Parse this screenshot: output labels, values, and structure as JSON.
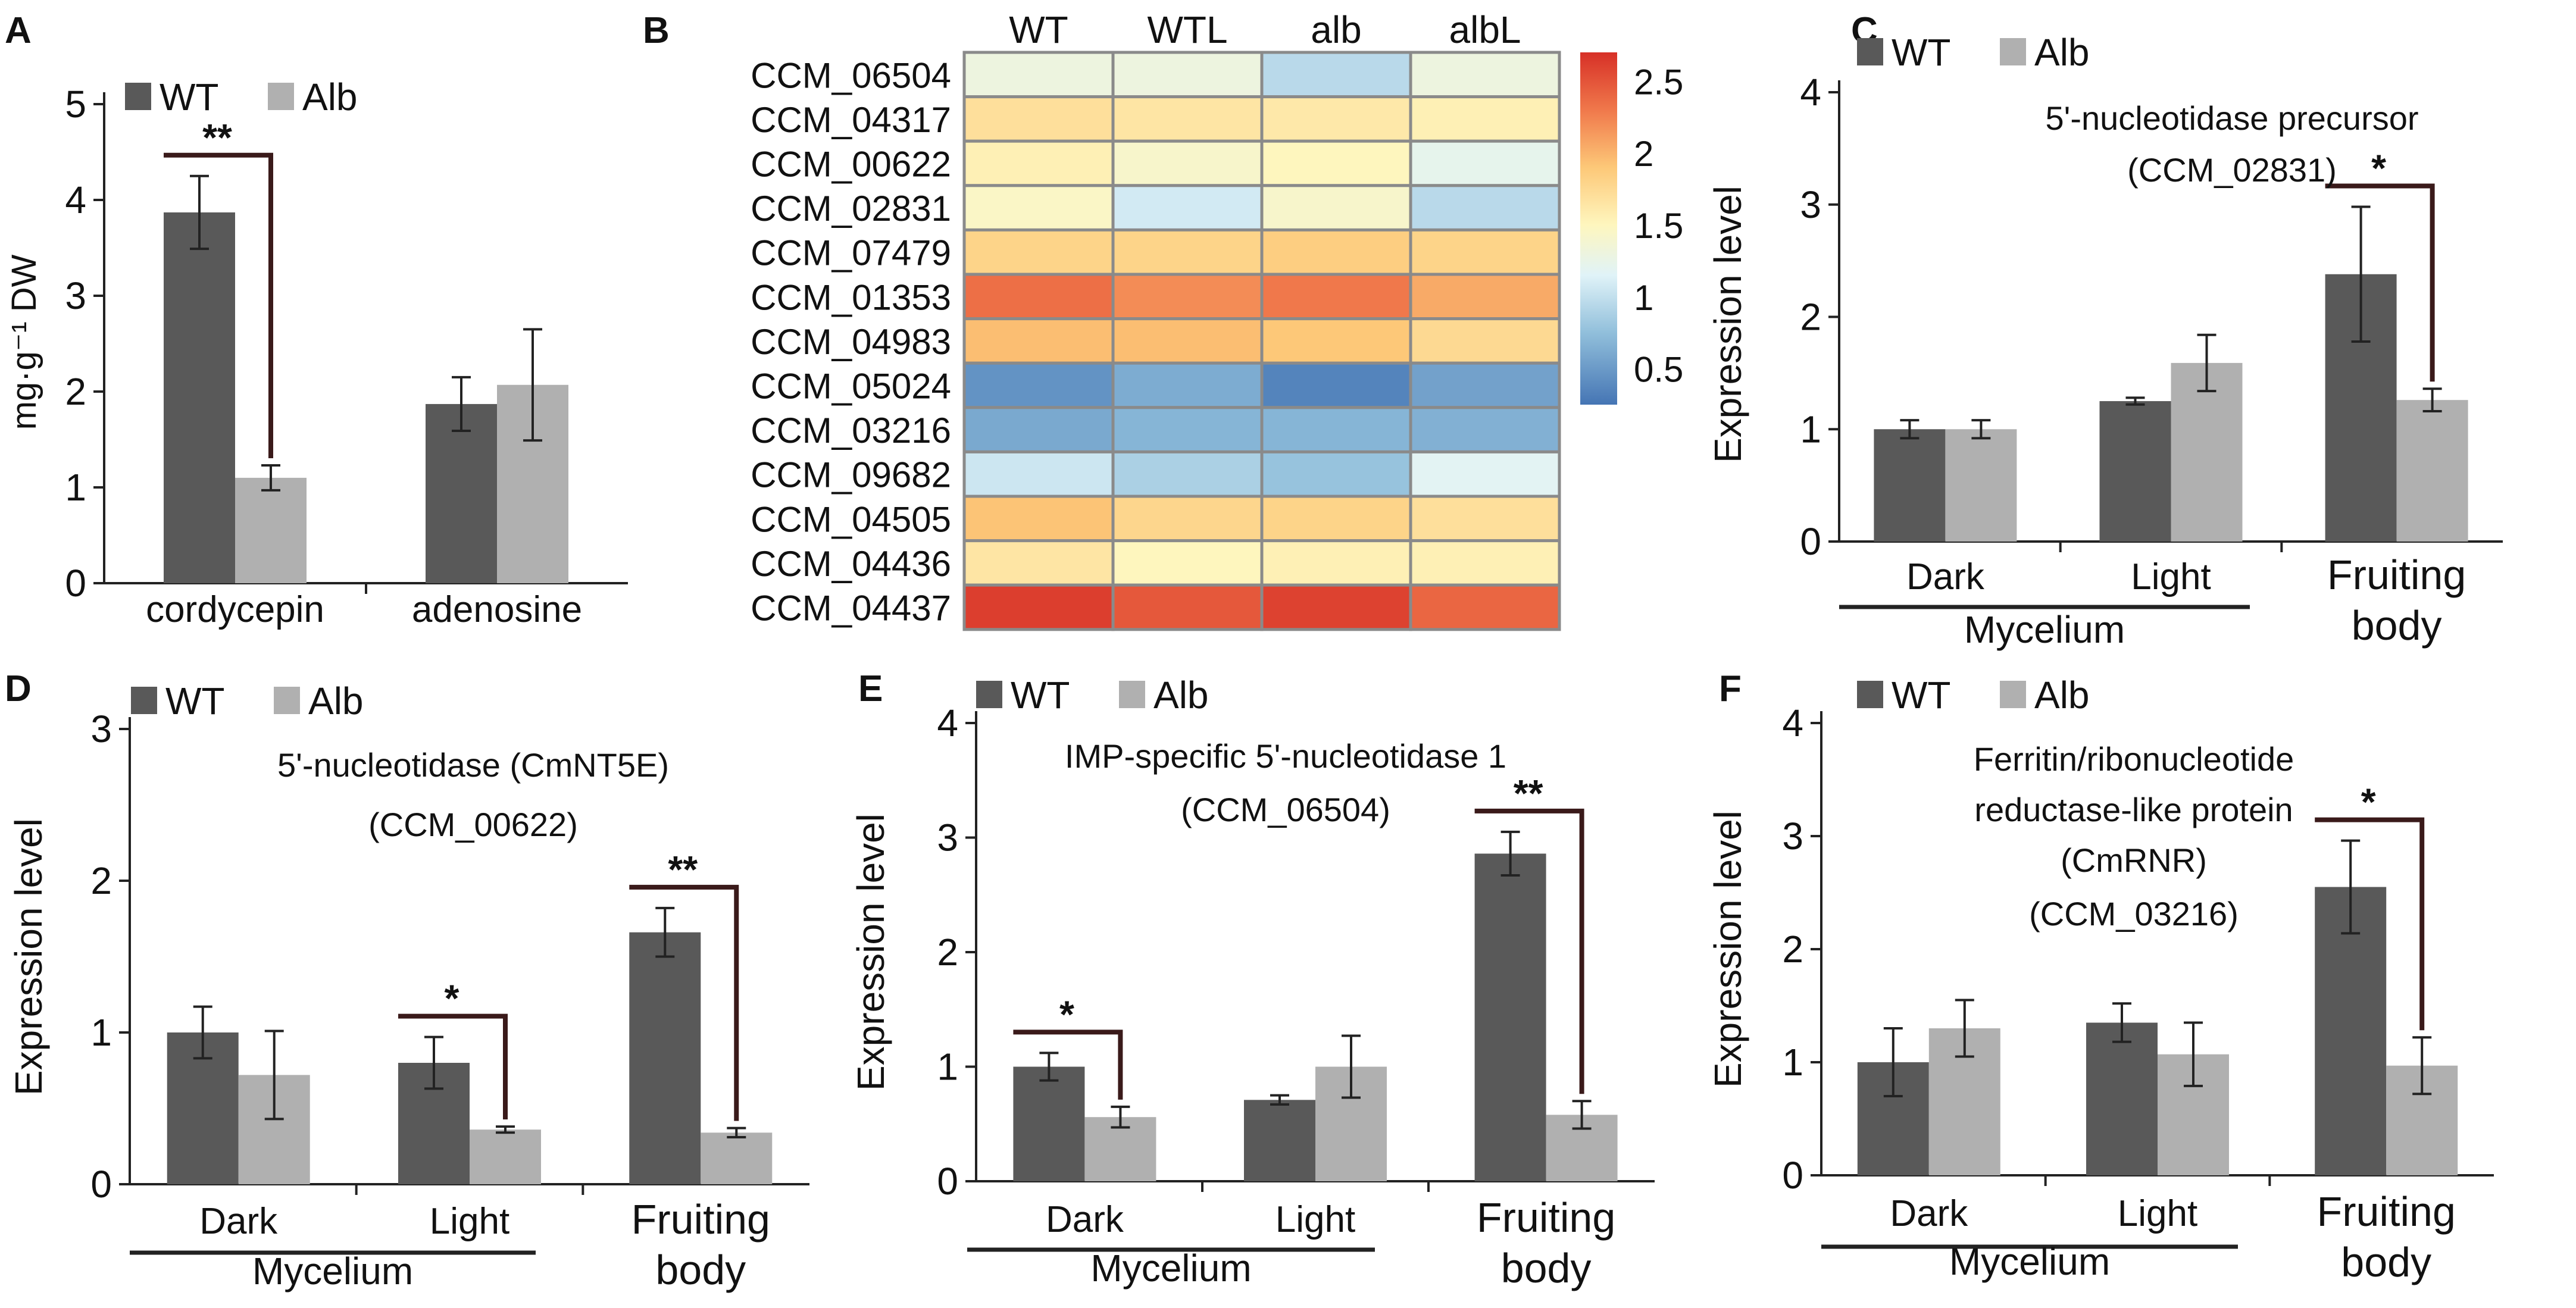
{
  "figure": {
    "panels": [
      {
        "id": "A",
        "kind": "bar"
      },
      {
        "id": "B",
        "kind": "heatmap"
      },
      {
        "id": "C",
        "kind": "bar"
      },
      {
        "id": "D",
        "kind": "bar"
      },
      {
        "id": "E",
        "kind": "bar"
      },
      {
        "id": "F",
        "kind": "bar"
      }
    ]
  },
  "colors": {
    "wt": "#595959",
    "alb": "#b0b0b0",
    "bracket": "#3a1a1a",
    "heat_border": "#8a8a8a"
  },
  "chart_data": [
    {
      "panel": "A",
      "type": "bar",
      "ylabel": "mg·g⁻¹ DW",
      "ylim": [
        0,
        5
      ],
      "yticks": [
        0,
        1,
        2,
        3,
        4,
        5
      ],
      "legend": [
        "WT",
        "Alb"
      ],
      "categories": [
        "cordycepin",
        "adenosine"
      ],
      "series": [
        {
          "name": "WT",
          "values": [
            3.87,
            1.87
          ],
          "errors": [
            0.38,
            0.28
          ]
        },
        {
          "name": "Alb",
          "values": [
            1.1,
            2.07
          ],
          "errors": [
            0.13,
            0.58
          ]
        }
      ],
      "significance": [
        {
          "group": 0,
          "label": "**"
        }
      ]
    },
    {
      "panel": "B",
      "type": "heatmap",
      "columns": [
        "WT",
        "WTL",
        "alb",
        "albL"
      ],
      "rows": [
        "CCM_06504",
        "CCM_04317",
        "CCM_00622",
        "CCM_02831",
        "CCM_07479",
        "CCM_01353",
        "CCM_04983",
        "CCM_05024",
        "CCM_03216",
        "CCM_09682",
        "CCM_04505",
        "CCM_04436",
        "CCM_04437"
      ],
      "values": [
        [
          1.3,
          1.3,
          0.95,
          1.3
        ],
        [
          1.7,
          1.65,
          1.62,
          1.55
        ],
        [
          1.55,
          1.42,
          1.5,
          1.22
        ],
        [
          1.45,
          1.08,
          1.42,
          0.95
        ],
        [
          1.8,
          1.8,
          1.85,
          1.8
        ],
        [
          2.35,
          2.2,
          2.3,
          2.05
        ],
        [
          1.95,
          1.95,
          1.9,
          1.75
        ],
        [
          0.45,
          0.62,
          0.35,
          0.55
        ],
        [
          0.6,
          0.68,
          0.68,
          0.65
        ],
        [
          1.05,
          0.88,
          0.78,
          1.18
        ],
        [
          1.92,
          1.78,
          1.8,
          1.7
        ],
        [
          1.65,
          1.5,
          1.55,
          1.55
        ],
        [
          2.62,
          2.48,
          2.6,
          2.4
        ]
      ],
      "colorbar": {
        "min": 0.25,
        "max": 2.7,
        "ticks": [
          0.5,
          1,
          1.5,
          2,
          2.5
        ],
        "tick_labels": [
          "0.5",
          "1",
          "1.5",
          "2",
          "2.5"
        ]
      }
    },
    {
      "panel": "C",
      "type": "bar",
      "title_lines": [
        "5'-nucleotidase precursor",
        "(CCM_02831)"
      ],
      "ylabel": "Expression level",
      "ylim": [
        0,
        4
      ],
      "yticks": [
        0,
        1,
        2,
        3,
        4
      ],
      "legend": [
        "WT",
        "Alb"
      ],
      "categories": [
        "Dark",
        "Light",
        "Fruiting body"
      ],
      "category_lines": [
        [
          "Dark"
        ],
        [
          "Light"
        ],
        [
          "Fruiting",
          "body"
        ]
      ],
      "group_label": "Mycelium",
      "series": [
        {
          "name": "WT",
          "values": [
            1.0,
            1.25,
            2.38
          ],
          "errors": [
            0.08,
            0.03,
            0.6
          ]
        },
        {
          "name": "Alb",
          "values": [
            1.0,
            1.59,
            1.26
          ],
          "errors": [
            0.08,
            0.25,
            0.1
          ]
        }
      ],
      "significance": [
        {
          "group": 2,
          "label": "*"
        }
      ]
    },
    {
      "panel": "D",
      "type": "bar",
      "title_lines": [
        "5'-nucleotidase (CmNT5E)",
        "(CCM_00622)"
      ],
      "ylabel": "Expression level",
      "ylim": [
        0,
        3
      ],
      "yticks": [
        0,
        1,
        2,
        3
      ],
      "legend": [
        "WT",
        "Alb"
      ],
      "categories": [
        "Dark",
        "Light",
        "Fruiting body"
      ],
      "category_lines": [
        [
          "Dark"
        ],
        [
          "Light"
        ],
        [
          "Fruiting",
          "body"
        ]
      ],
      "group_label": "Mycelium",
      "series": [
        {
          "name": "WT",
          "values": [
            1.0,
            0.8,
            1.66
          ],
          "errors": [
            0.17,
            0.17,
            0.16
          ]
        },
        {
          "name": "Alb",
          "values": [
            0.72,
            0.36,
            0.34
          ],
          "errors": [
            0.29,
            0.02,
            0.03
          ]
        }
      ],
      "significance": [
        {
          "group": 1,
          "label": "*"
        },
        {
          "group": 2,
          "label": "**"
        }
      ]
    },
    {
      "panel": "E",
      "type": "bar",
      "title_lines": [
        "IMP-specific 5'-nucleotidase 1",
        "(CCM_06504)"
      ],
      "ylabel": "Expression level",
      "ylim": [
        0,
        4
      ],
      "yticks": [
        0,
        1,
        2,
        3,
        4
      ],
      "legend": [
        "WT",
        "Alb"
      ],
      "categories": [
        "Dark",
        "Light",
        "Fruiting body"
      ],
      "category_lines": [
        [
          "Dark"
        ],
        [
          "Light"
        ],
        [
          "Fruiting",
          "body"
        ]
      ],
      "group_label": "Mycelium",
      "series": [
        {
          "name": "WT",
          "values": [
            1.0,
            0.71,
            2.86
          ],
          "errors": [
            0.12,
            0.04,
            0.19
          ]
        },
        {
          "name": "Alb",
          "values": [
            0.56,
            1.0,
            0.58
          ],
          "errors": [
            0.09,
            0.27,
            0.12
          ]
        }
      ],
      "significance": [
        {
          "group": 0,
          "label": "*"
        },
        {
          "group": 2,
          "label": "**"
        }
      ]
    },
    {
      "panel": "F",
      "type": "bar",
      "title_lines": [
        "Ferritin/ribonucleotide",
        "reductase-like protein",
        "(CmRNR)",
        "(CCM_03216)"
      ],
      "ylabel": "Expression level",
      "ylim": [
        0,
        4
      ],
      "yticks": [
        0,
        1,
        2,
        3,
        4
      ],
      "legend": [
        "WT",
        "Alb"
      ],
      "categories": [
        "Dark",
        "Light",
        "Fruiting body"
      ],
      "category_lines": [
        [
          "Dark"
        ],
        [
          "Light"
        ],
        [
          "Fruiting",
          "body"
        ]
      ],
      "group_label": "Mycelium",
      "series": [
        {
          "name": "WT",
          "values": [
            1.0,
            1.35,
            2.55
          ],
          "errors": [
            0.3,
            0.17,
            0.41
          ]
        },
        {
          "name": "Alb",
          "values": [
            1.3,
            1.07,
            0.97
          ],
          "errors": [
            0.25,
            0.28,
            0.25
          ]
        }
      ],
      "significance": [
        {
          "group": 2,
          "label": "*"
        }
      ]
    }
  ]
}
